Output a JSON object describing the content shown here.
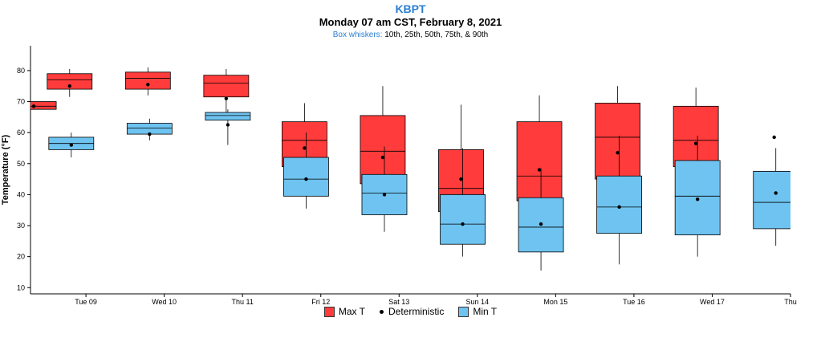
{
  "header": {
    "station": "KBPT",
    "subtitle": "Monday 07 am CST, February 8, 2021",
    "whisker_label": "Box whiskers:",
    "whisker_desc": "10th, 25th, 50th, 75th, & 90th"
  },
  "legend": {
    "max": "Max T",
    "det": "Deterministic",
    "min": "Min T"
  },
  "colors": {
    "max": "#ff3b3b",
    "min": "#6ec3f0"
  },
  "chart_data": {
    "type": "box",
    "ylabel": "Temperature (°F)",
    "ylim": [
      8,
      88
    ],
    "yticks": [
      10,
      20,
      30,
      40,
      50,
      60,
      70,
      80
    ],
    "x_range": [
      "2021-02-08 07:00",
      "2021-02-18 00:00"
    ],
    "xticks": [
      {
        "label": "Tue 09",
        "date": "2021-02-09"
      },
      {
        "label": "Wed 10",
        "date": "2021-02-10"
      },
      {
        "label": "Thu 11",
        "date": "2021-02-11"
      },
      {
        "label": "Fri 12",
        "date": "2021-02-12"
      },
      {
        "label": "Sat 13",
        "date": "2021-02-13"
      },
      {
        "label": "Sun 14",
        "date": "2021-02-14"
      },
      {
        "label": "Mon 15",
        "date": "2021-02-15"
      },
      {
        "label": "Tue 16",
        "date": "2021-02-16"
      },
      {
        "label": "Wed 17",
        "date": "2021-02-17"
      },
      {
        "label": "Thu",
        "date": "2021-02-18"
      }
    ],
    "series": [
      {
        "name": "Max T",
        "boxes": [
          {
            "center": "2021-02-08 08:00",
            "p10": 67.5,
            "p25": 67.5,
            "p50": 68.5,
            "p75": 70,
            "p90": 70,
            "det": 68.5
          },
          {
            "center": "2021-02-08 19:00",
            "p10": 71.5,
            "p25": 74,
            "p50": 77,
            "p75": 79,
            "p90": 80.5,
            "det": 75
          },
          {
            "center": "2021-02-09 19:00",
            "p10": 72,
            "p25": 74,
            "p50": 77.5,
            "p75": 79.5,
            "p90": 81,
            "det": 75.5
          },
          {
            "center": "2021-02-10 19:00",
            "p10": 65,
            "p25": 71.5,
            "p50": 76,
            "p75": 78.5,
            "p90": 80.5,
            "det": 71
          },
          {
            "center": "2021-02-11 19:00",
            "p10": 44,
            "p25": 49,
            "p50": 57.5,
            "p75": 63.5,
            "p90": 69.5,
            "det": 55
          },
          {
            "center": "2021-02-12 19:00",
            "p10": 37.5,
            "p25": 43.5,
            "p50": 54,
            "p75": 65.5,
            "p90": 75,
            "det": 52
          },
          {
            "center": "2021-02-13 19:00",
            "p10": 29.5,
            "p25": 34.5,
            "p50": 42,
            "p75": 54.5,
            "p90": 69,
            "det": 45
          },
          {
            "center": "2021-02-14 19:00",
            "p10": 32.5,
            "p25": 38,
            "p50": 46,
            "p75": 63.5,
            "p90": 72,
            "det": 48
          },
          {
            "center": "2021-02-15 19:00",
            "p10": 36.5,
            "p25": 45,
            "p50": 58.5,
            "p75": 69.5,
            "p90": 75,
            "det": 53.5
          },
          {
            "center": "2021-02-16 19:00",
            "p10": 41.5,
            "p25": 49,
            "p50": 57.5,
            "p75": 68.5,
            "p90": 74.5,
            "det": 56.5
          },
          {
            "center": "2021-02-17 19:00",
            "det": 58.5
          }
        ]
      },
      {
        "name": "Min T",
        "boxes": [
          {
            "center": "2021-02-08 19:30",
            "p10": 52,
            "p25": 54.5,
            "p50": 56.5,
            "p75": 58.5,
            "p90": 60,
            "det": 56
          },
          {
            "center": "2021-02-09 19:30",
            "p10": 57.5,
            "p25": 59.5,
            "p50": 61.5,
            "p75": 63,
            "p90": 64.5,
            "det": 59.5
          },
          {
            "center": "2021-02-10 19:30",
            "p10": 56,
            "p25": 64,
            "p50": 65.5,
            "p75": 66.5,
            "p90": 67.5,
            "det": 62.5
          },
          {
            "center": "2021-02-11 19:30",
            "p10": 35.5,
            "p25": 39.5,
            "p50": 45,
            "p75": 52,
            "p90": 60,
            "det": 45
          },
          {
            "center": "2021-02-12 19:30",
            "p10": 28,
            "p25": 33.5,
            "p50": 40.5,
            "p75": 46.5,
            "p90": 55.5,
            "det": 40
          },
          {
            "center": "2021-02-13 19:30",
            "p10": 20,
            "p25": 24,
            "p50": 30.5,
            "p75": 40,
            "p90": 55,
            "det": 30.5
          },
          {
            "center": "2021-02-14 19:30",
            "p10": 15.5,
            "p25": 21.5,
            "p50": 29.5,
            "p75": 39,
            "p90": 48.5,
            "det": 30.5
          },
          {
            "center": "2021-02-15 19:30",
            "p10": 17.5,
            "p25": 27.5,
            "p50": 36,
            "p75": 46,
            "p90": 59,
            "det": 36
          },
          {
            "center": "2021-02-16 19:30",
            "p10": 20,
            "p25": 27,
            "p50": 39.5,
            "p75": 51,
            "p90": 59,
            "det": 38.5
          },
          {
            "center": "2021-02-17 19:30",
            "p10": 23.5,
            "p25": 29,
            "p50": 37.5,
            "p75": 47.5,
            "p90": 55,
            "det": 40.5
          }
        ]
      }
    ]
  }
}
